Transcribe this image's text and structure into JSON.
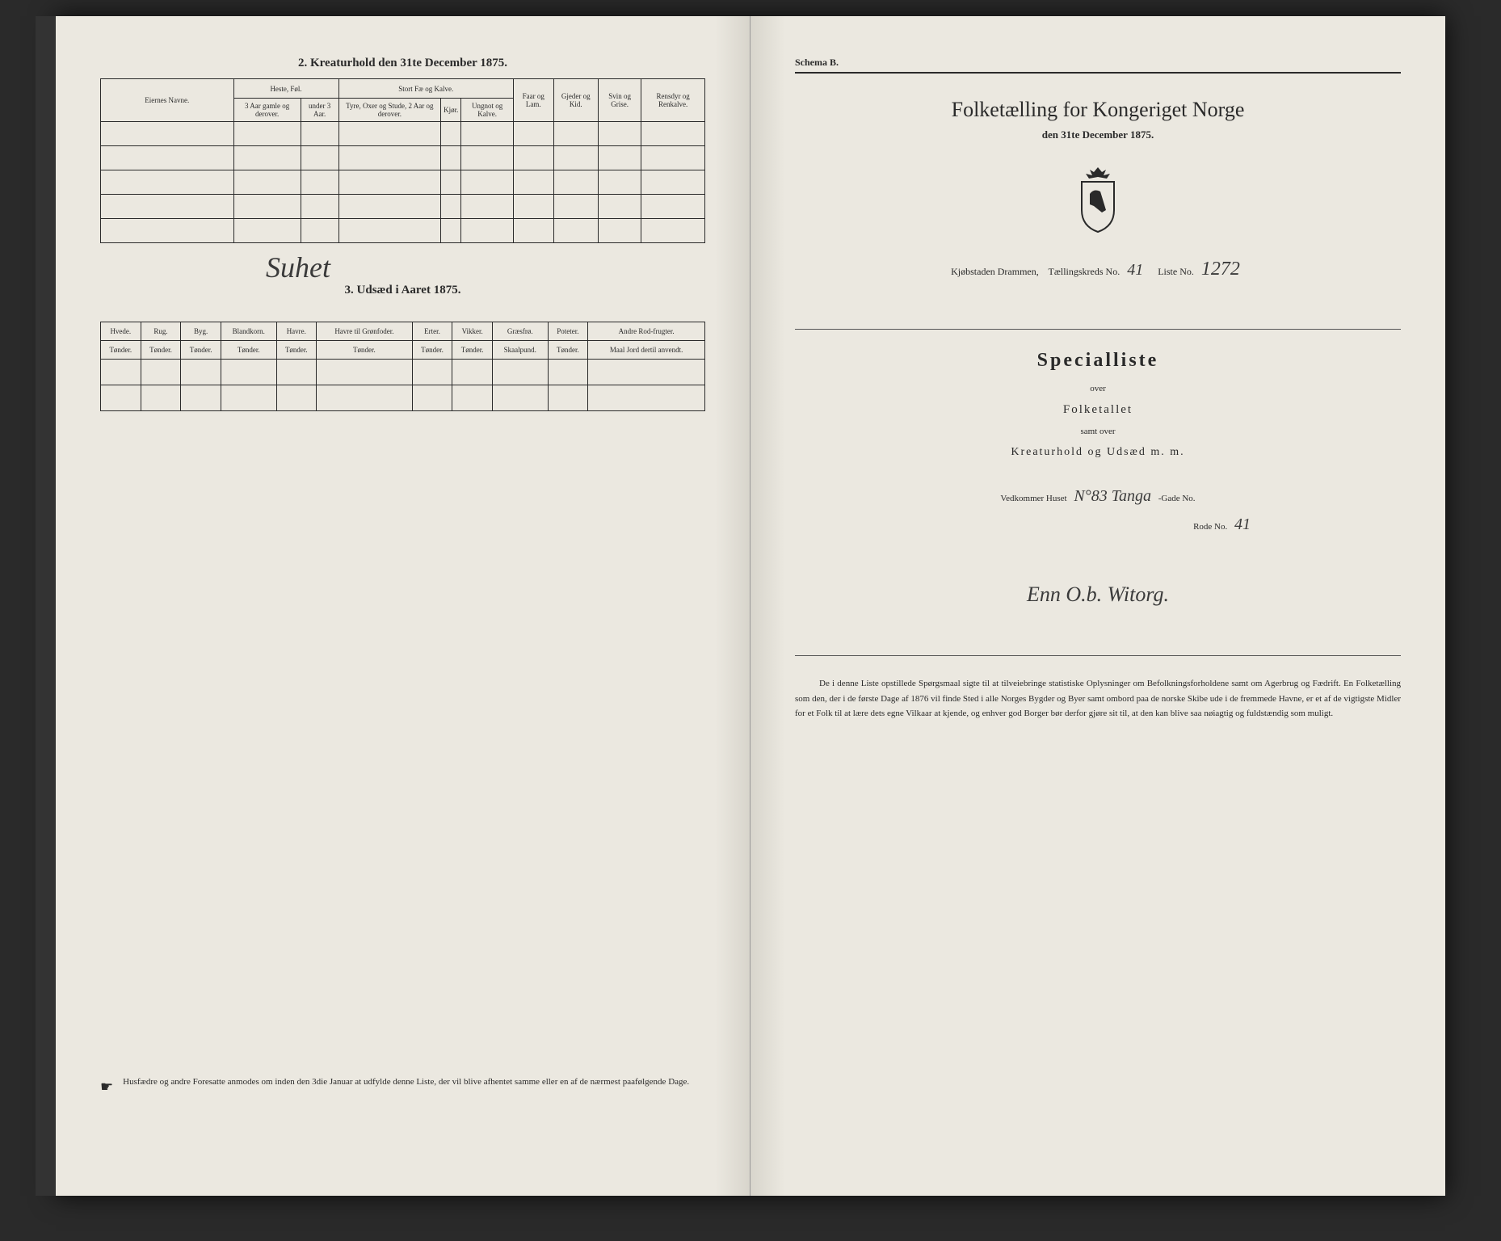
{
  "left": {
    "section2_title": "2. Kreaturhold den 31te December 1875.",
    "table1": {
      "col1": "Eiernes Navne.",
      "group_heste": "Heste, Føl.",
      "heste_a": "3 Aar gamle og derover.",
      "heste_b": "under 3 Aar.",
      "group_stort": "Stort Fæ og Kalve.",
      "stort_a": "Tyre, Oxer og Stude, 2 Aar og derover.",
      "stort_b": "Kjør.",
      "stort_c": "Ungnot og Kalve.",
      "faar": "Faar og Lam.",
      "gjeder": "Gjeder og Kid.",
      "svin": "Svin og Grise.",
      "rensdyr": "Rensdyr og Renkalve."
    },
    "signature1": "Suhet",
    "section3_title": "3. Udsæd i Aaret 1875.",
    "table2": {
      "cols": [
        "Hvede.",
        "Rug.",
        "Byg.",
        "Blandkorn.",
        "Havre.",
        "Havre til Grønfoder.",
        "Erter.",
        "Vikker.",
        "Græsfrø.",
        "Poteter.",
        "Andre Rod-frugter."
      ],
      "units": [
        "Tønder.",
        "Tønder.",
        "Tønder.",
        "Tønder.",
        "Tønder.",
        "Tønder.",
        "Tønder.",
        "Tønder.",
        "Skaalpund.",
        "Tønder.",
        "Maal Jord dertil anvendt."
      ]
    },
    "footer": "Husfædre og andre Foresatte anmodes om inden den 3die Januar at udfylde denne Liste, der vil blive afhentet samme eller en af de nærmest paafølgende Dage."
  },
  "right": {
    "schema": "Schema B.",
    "main_title": "Folketælling for Kongeriget Norge",
    "title_date": "den 31te December 1875.",
    "kjob": "Kjøbstaden Drammen,",
    "kreds_label": "Tællingskreds No.",
    "kreds_no": "41",
    "liste_label": "Liste No.",
    "liste_no": "1272",
    "special": "Specialliste",
    "over": "over",
    "folketallet": "Folketallet",
    "samt": "samt over",
    "kreatur": "Kreaturhold og Udsæd m. m.",
    "vedkom": "Vedkommer Huset",
    "huset_hw": "N°83 Tanga",
    "gade": "-Gade No.",
    "rode": "Rode No.",
    "rode_no": "41",
    "signature": "Enn O.b. Witorg.",
    "para": "De i denne Liste opstillede Spørgsmaal sigte til at tilveiebringe statistiske Oplysninger om Befolkningsforholdene samt om Agerbrug og Fædrift. En Folketælling som den, der i de første Dage af 1876 vil finde Sted i alle Norges Bygder og Byer samt ombord paa de norske Skibe ude i de fremmede Havne, er et af de vigtigste Midler for et Folk til at lære dets egne Vilkaar at kjende, og enhver god Borger bør derfor gjøre sit til, at den kan blive saa nøiagtig og fuldstændig som muligt."
  },
  "colors": {
    "page_bg": "#ebe8e0",
    "ink": "#2a2a2a",
    "handwriting": "#3a3a3a"
  }
}
